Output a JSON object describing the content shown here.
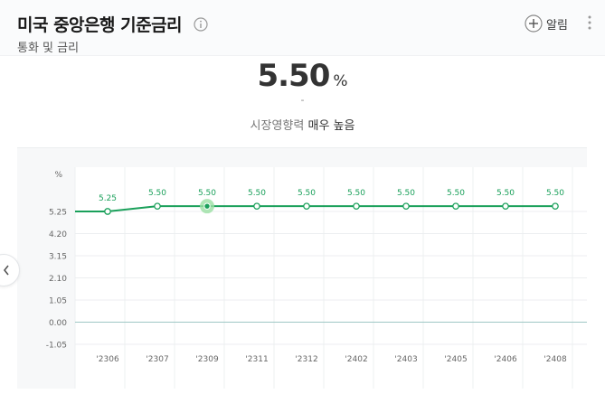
{
  "header": {
    "title": "미국 중앙은행 기준금리",
    "subtitle": "통화 및 금리",
    "alert_label": "알림"
  },
  "summary": {
    "value": "5.50",
    "unit": "%",
    "change": "-",
    "influence_prefix": "시장영향력",
    "influence_level": "매우 높음"
  },
  "icons": {
    "info": "info-circle-icon",
    "alert": "plus-circle-icon",
    "menu": "kebab-menu-icon",
    "prev": "chevron-left-icon"
  },
  "colors": {
    "line": "#1aa05a",
    "highlight": "#9be0a4"
  },
  "chart_data": {
    "type": "line",
    "y_unit": "%",
    "categories": [
      "'2306",
      "'2307",
      "'2309",
      "'2311",
      "'2312",
      "'2402",
      "'2403",
      "'2405",
      "'2406",
      "'2408"
    ],
    "values": [
      5.25,
      5.5,
      5.5,
      5.5,
      5.5,
      5.5,
      5.5,
      5.5,
      5.5,
      5.5
    ],
    "data_labels": [
      "5.25",
      "5.50",
      "5.50",
      "5.50",
      "5.50",
      "5.50",
      "5.50",
      "5.50",
      "5.50",
      "5.50"
    ],
    "series_start_value": 5.25,
    "yticks": [
      5.25,
      4.2,
      3.15,
      2.1,
      1.05,
      0.0,
      -1.05
    ],
    "ytick_labels": [
      "5.25",
      "4.20",
      "3.15",
      "2.10",
      "1.05",
      "0.00",
      "-1.05"
    ],
    "ylim": [
      -1.05,
      5.25
    ],
    "highlighted_index": 2,
    "grid": true
  }
}
